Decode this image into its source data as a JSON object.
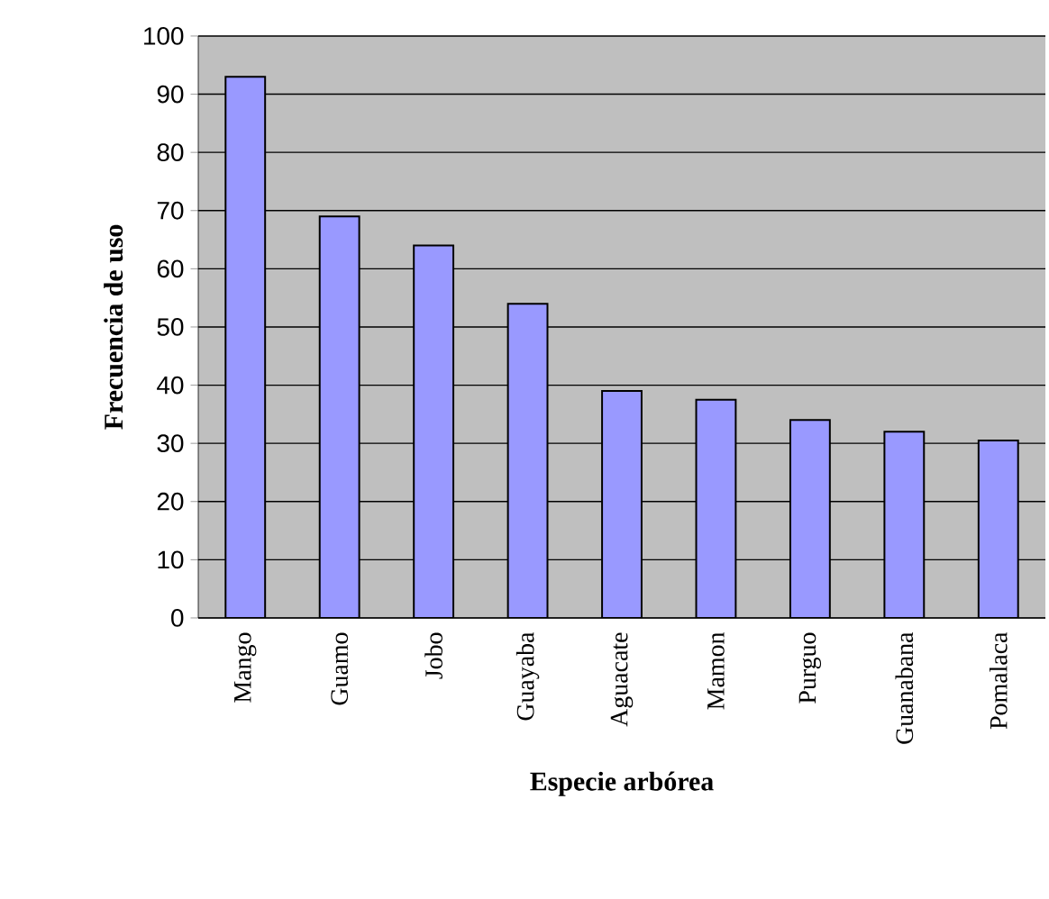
{
  "chart_data": {
    "type": "bar",
    "xlabel": "Especie arbórea",
    "ylabel": "Frecuencia de uso",
    "categories": [
      "Mango",
      "Guamo",
      "Jobo",
      "Guayaba",
      "Aguacate",
      "Mamon",
      "Purguo",
      "Guanabana",
      "Pomalaca"
    ],
    "values": [
      93,
      69,
      64,
      54,
      39,
      37.5,
      34,
      32,
      30.5
    ],
    "color": "#9999ff",
    "ylim": [
      0,
      100
    ],
    "yticks": [
      0,
      10,
      20,
      30,
      40,
      50,
      60,
      70,
      80,
      90,
      100
    ],
    "grid": "y"
  }
}
